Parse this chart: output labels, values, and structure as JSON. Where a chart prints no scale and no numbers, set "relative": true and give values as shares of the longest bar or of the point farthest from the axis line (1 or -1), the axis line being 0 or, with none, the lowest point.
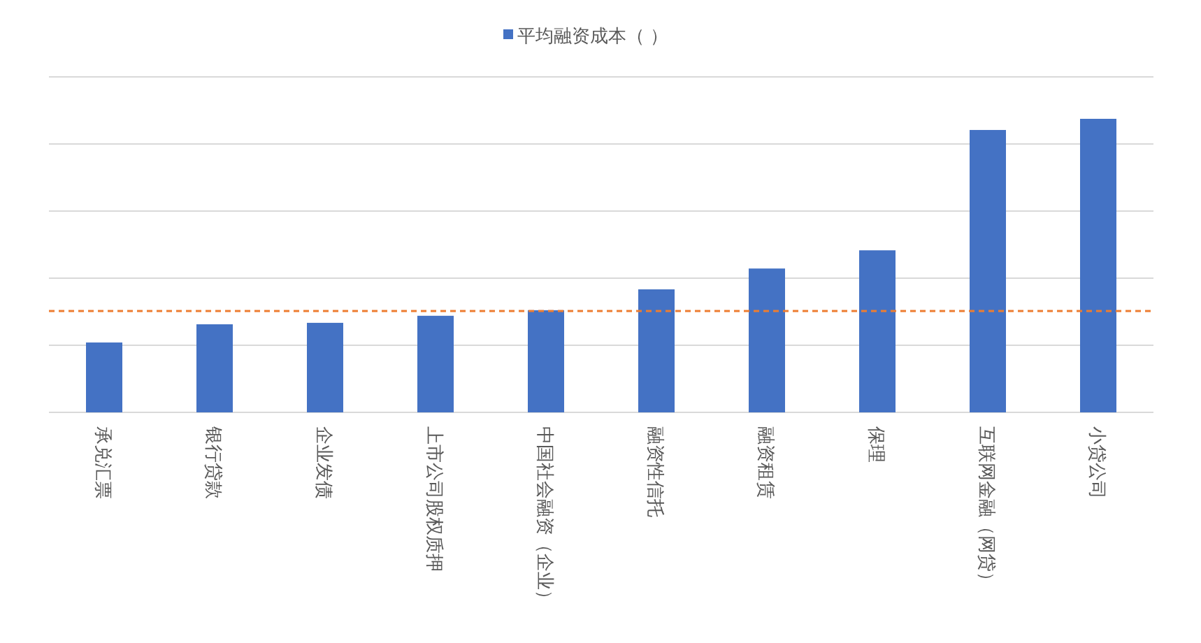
{
  "chart_data": {
    "type": "bar",
    "relative": true,
    "grid": "y",
    "legend": "top",
    "categories": [
      "承兑汇票",
      "银行贷款",
      "企业发债",
      "上市公司股权质押",
      "中国社会融资（企业）",
      "融资性信托",
      "融资租赁",
      "保理",
      "互联网金融（网贷）",
      "小贷公司"
    ],
    "series": [
      {
        "name": "平均融资成本（ ）",
        "color": "#4472c4",
        "values": [
          0.238,
          0.3,
          0.305,
          0.329,
          0.348,
          0.419,
          0.49,
          0.552,
          0.962,
          1
        ]
      }
    ],
    "ref_lines": [
      {
        "axis": "y",
        "value": 0.345,
        "color": "#ed7d31",
        "line_style": "dashed"
      }
    ]
  }
}
